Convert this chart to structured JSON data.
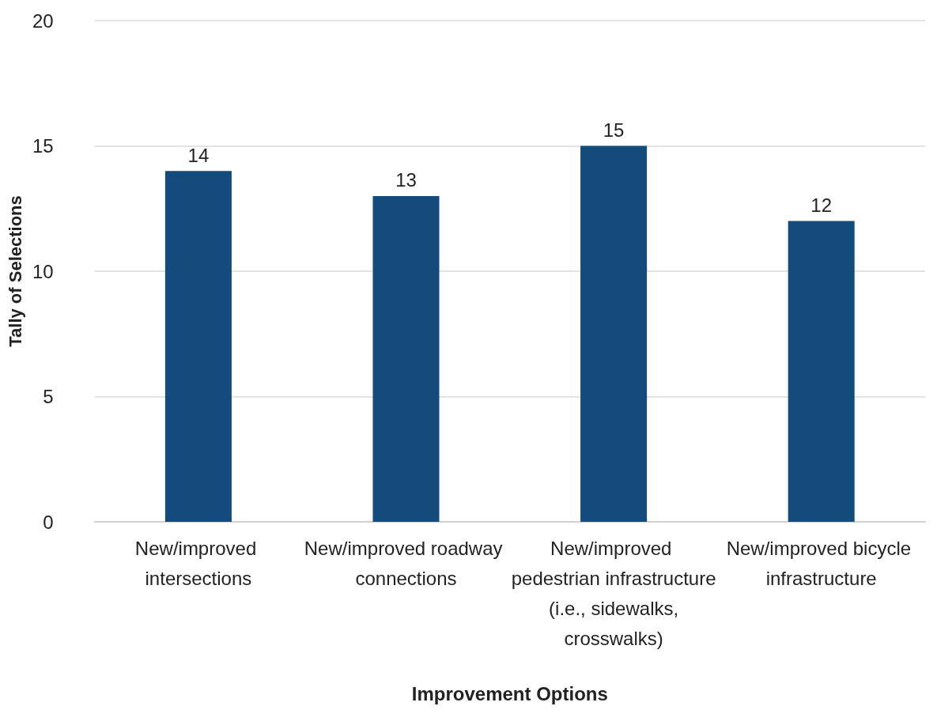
{
  "chart_data": {
    "type": "bar",
    "xlabel": "Improvement Options",
    "ylabel": "Tally of Selections",
    "categories": [
      "New/improved intersections",
      "New/improved roadway connections",
      "New/improved pedestrian infrastructure (i.e., sidewalks, crosswalks)",
      "New/improved bicycle infrastructure"
    ],
    "values": [
      14,
      13,
      15,
      12
    ],
    "color": "#124b7c",
    "ylim": [
      0,
      20
    ],
    "yticks": [
      0,
      5,
      10,
      15,
      20
    ],
    "grid": "y",
    "data_labels": true
  }
}
